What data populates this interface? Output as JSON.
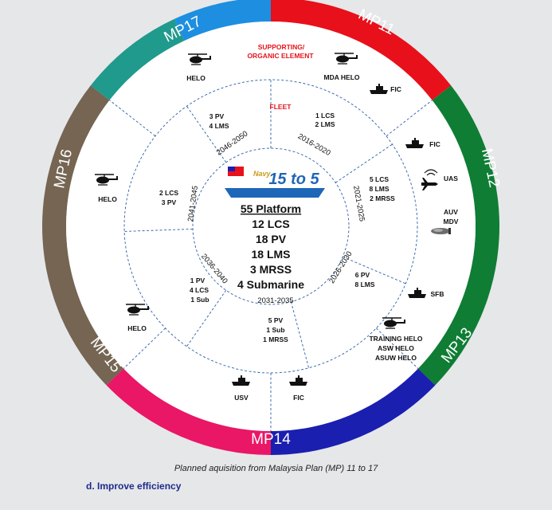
{
  "rings": {
    "outer": [
      {
        "label": "MP11",
        "color": "#e8101a"
      },
      {
        "label": "MP12",
        "color": "#0f7d34"
      },
      {
        "label": "MP13",
        "color": "#1a1fb0"
      },
      {
        "label": "MP14",
        "color": "#ea1666"
      },
      {
        "label": "MP15",
        "color": "#756552"
      },
      {
        "label": "MP16",
        "color": "#1f9a8d"
      },
      {
        "label": "MP17",
        "color": "#1e8fe0"
      }
    ]
  },
  "labels": {
    "supporting_line1": "SUPPORTING/",
    "supporting_line2": "ORGANIC ELEMENT",
    "fleet": "FLEET"
  },
  "periods": [
    "2016-2020",
    "2021-2025",
    "2026-2030",
    "2031-2035",
    "2036-2040",
    "2041-2045",
    "2046-2050"
  ],
  "fleet_items": {
    "p2016": [
      "1 LCS",
      "2 LMS"
    ],
    "p2021": [
      "5 LCS",
      "8 LMS",
      "2 MRSS"
    ],
    "p2026": [
      "6 PV",
      "8 LMS"
    ],
    "p2031": [
      "5 PV",
      "1 Sub",
      "1 MRSS"
    ],
    "p2036": [
      "1 PV",
      "4 LCS",
      "1 Sub"
    ],
    "p2041": [
      "2 LCS",
      "3 PV"
    ],
    "p2046": [
      "3 PV",
      "4 LMS"
    ]
  },
  "support": {
    "mp11_helo": "MDA HELO",
    "mp11_fic": "FIC",
    "mp12_fic": "FIC",
    "mp12_uas": "UAS",
    "mp12_auv1": "AUV",
    "mp12_auv2": "MDV",
    "mp13_sfb": "SFB",
    "mp13_helo1": "TRAINING HELO",
    "mp13_helo2": "ASW HELO",
    "mp13_helo3": "ASUW HELO",
    "mp14_usv": "USV",
    "mp14_fic": "FIC",
    "mp15_helo": "HELO",
    "mp16_helo": "HELO",
    "mp17_helo": "HELO"
  },
  "center": {
    "logo_text": "15 to 5",
    "logo_small": "Navy",
    "headline": "55 Platform",
    "lines": [
      "12 LCS",
      "18 PV",
      "18 LMS",
      "3 MRSS",
      "4 Submarine"
    ]
  },
  "caption": "Planned aquisition from Malaysia Plan (MP) 11 to 17",
  "subheading": "d.  Improve efficiency"
}
